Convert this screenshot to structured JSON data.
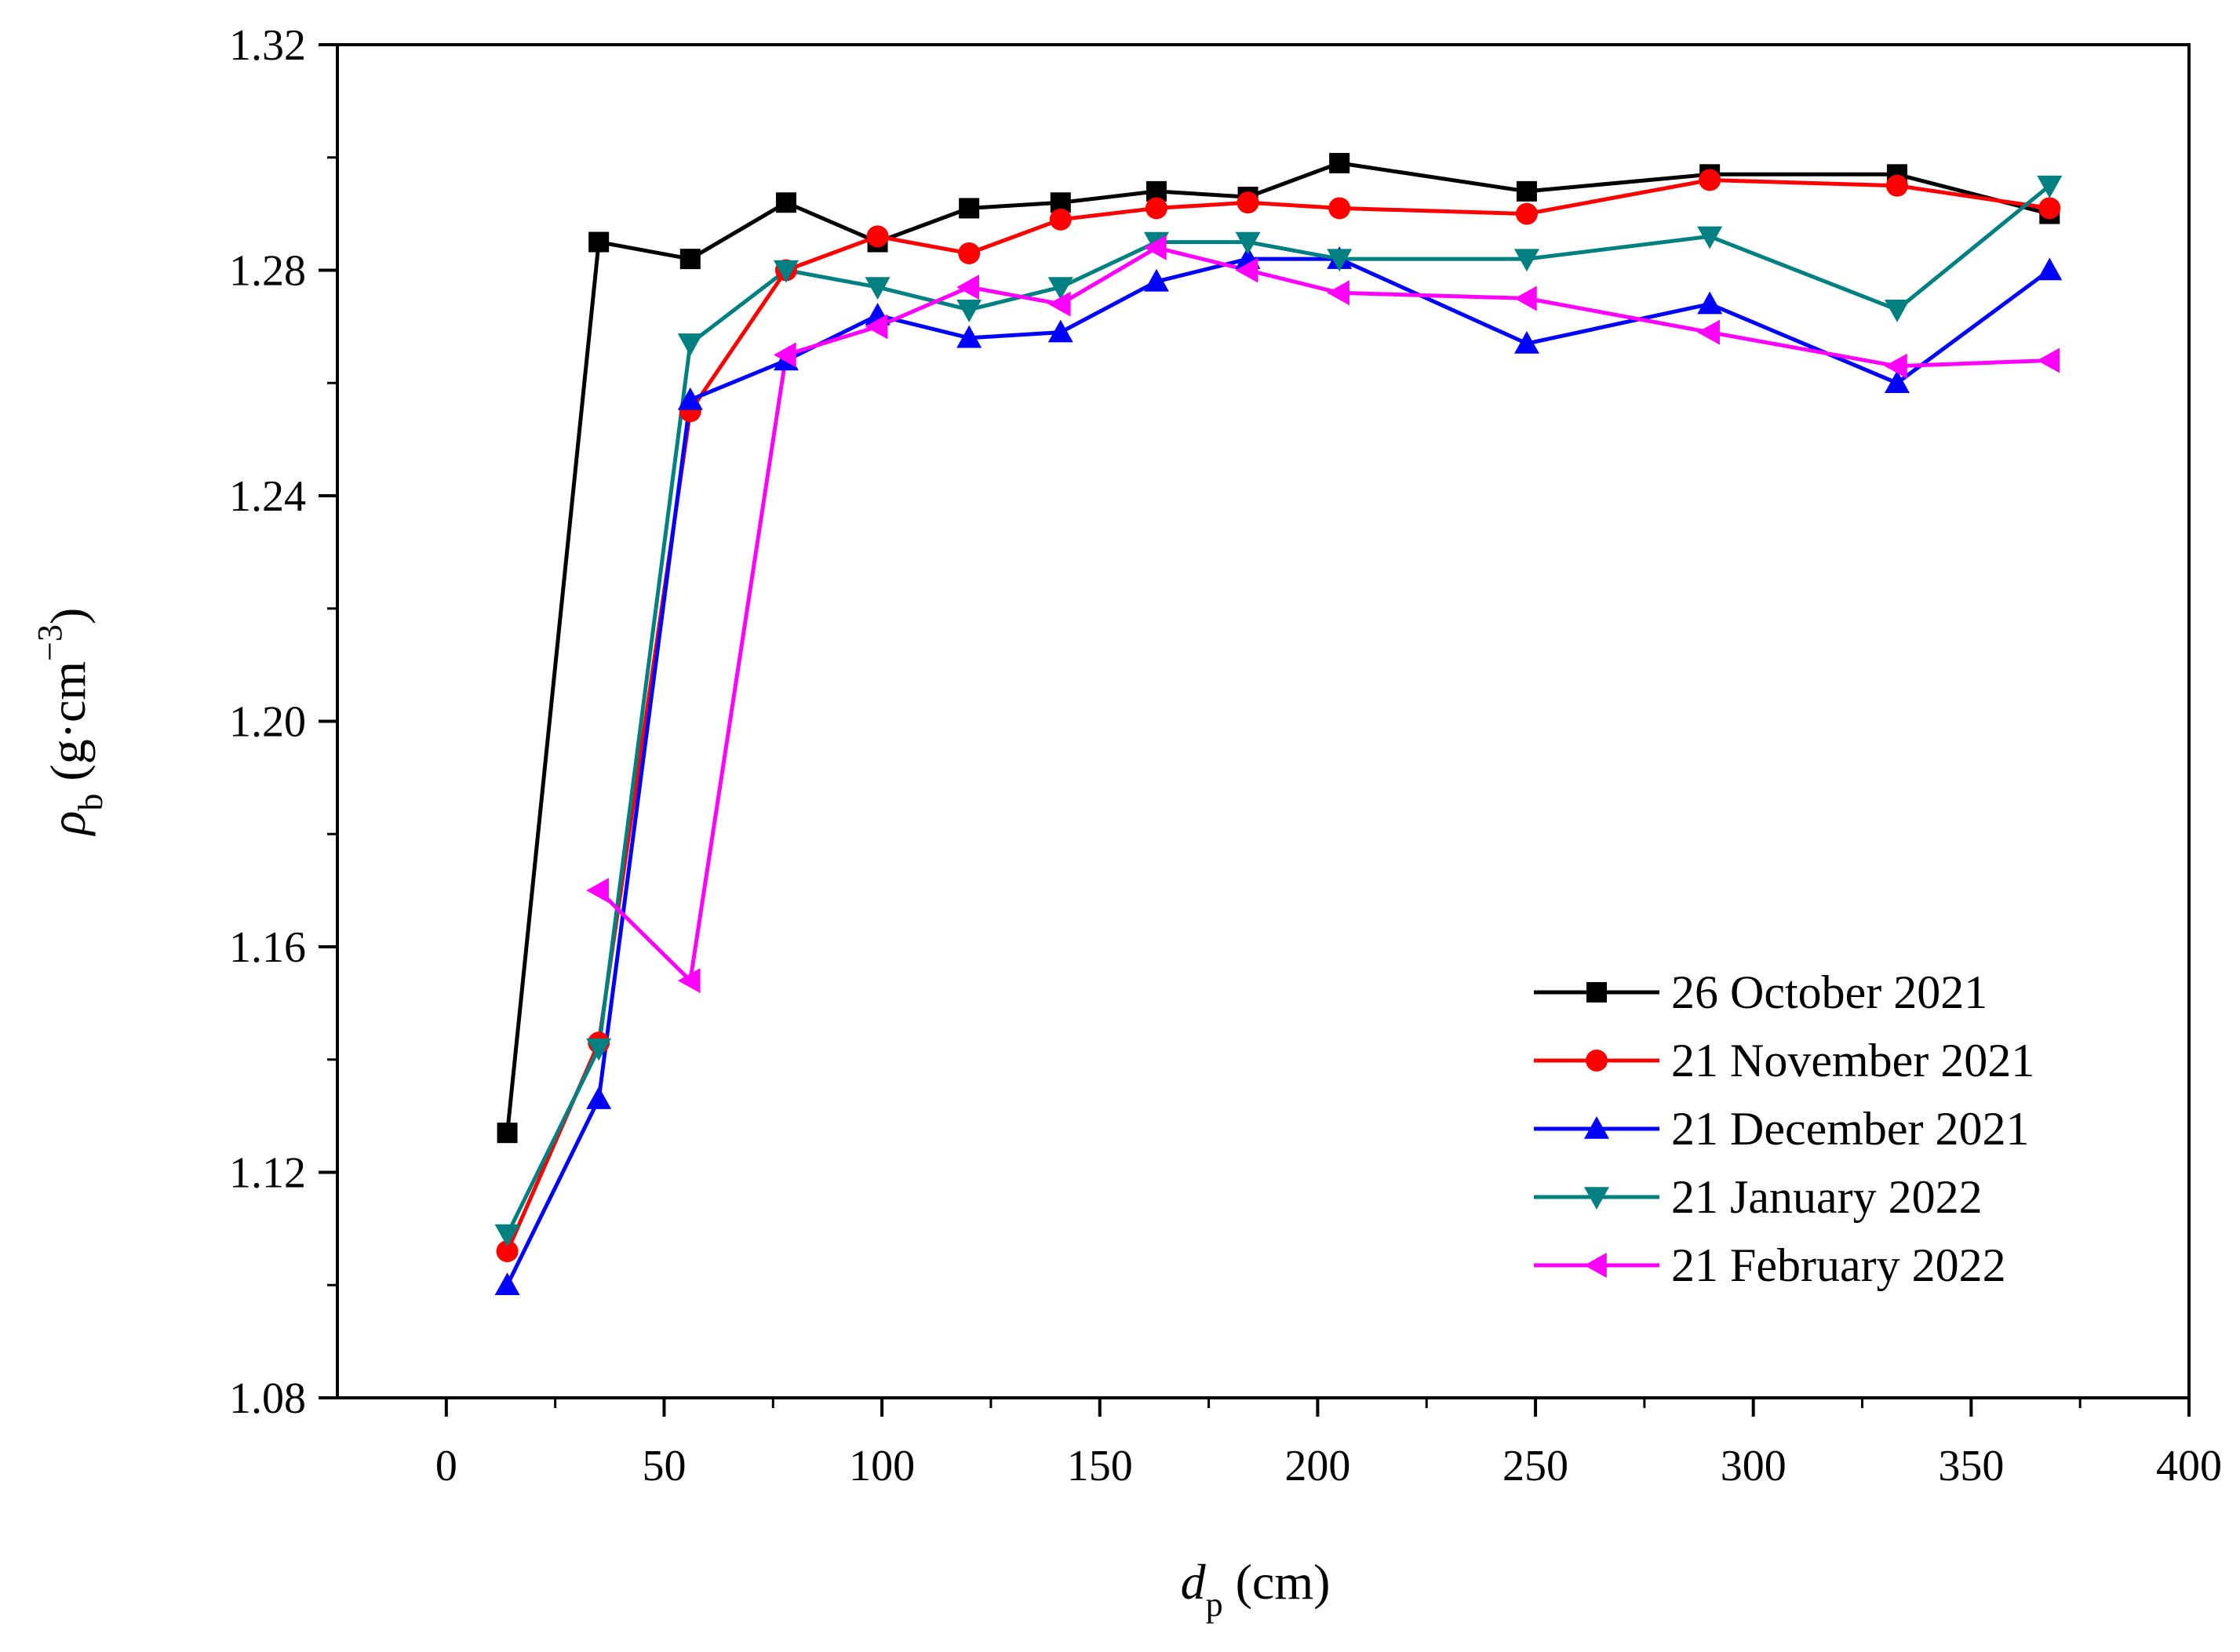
{
  "chart_data": {
    "type": "line",
    "title": "",
    "xlabel": {
      "main": "d",
      "sub": "p",
      "unit": " (cm)"
    },
    "ylabel": {
      "main": "ρ",
      "sub": "b",
      "unit_open": " (g·cm",
      "unit_sup": "−3",
      "unit_close": ")"
    },
    "xlim": [
      -25,
      400
    ],
    "ylim": [
      1.08,
      1.32
    ],
    "xticks": [
      0,
      50,
      100,
      150,
      200,
      250,
      300,
      350,
      400
    ],
    "xtick_labels": [
      "0",
      "50",
      "100",
      "150",
      "200",
      "250",
      "300",
      "350",
      "400"
    ],
    "yticks": [
      1.08,
      1.12,
      1.16,
      1.2,
      1.24,
      1.28,
      1.32
    ],
    "ytick_labels": [
      "1.08",
      "1.12",
      "1.16",
      "1.20",
      "1.24",
      "1.28",
      "1.32"
    ],
    "grid": false,
    "legend_position": "bottom-right",
    "series": [
      {
        "name": "26 October 2021",
        "color": "#000000",
        "marker": "square",
        "x": [
          14,
          35,
          56,
          78,
          99,
          120,
          141,
          163,
          184,
          205,
          248,
          290,
          333,
          368
        ],
        "y": [
          1.127,
          1.285,
          1.282,
          1.292,
          1.285,
          1.291,
          1.292,
          1.294,
          1.293,
          1.299,
          1.294,
          1.297,
          1.297,
          1.29
        ]
      },
      {
        "name": "21 November 2021",
        "color": "#ff0000",
        "marker": "circle",
        "x": [
          14,
          35,
          56,
          78,
          99,
          120,
          141,
          163,
          184,
          205,
          248,
          290,
          333,
          368
        ],
        "y": [
          1.106,
          1.143,
          1.255,
          1.28,
          1.286,
          1.283,
          1.289,
          1.291,
          1.292,
          1.291,
          1.29,
          1.296,
          1.295,
          1.291
        ]
      },
      {
        "name": "21 December 2021",
        "color": "#0000ff",
        "marker": "triangle-up",
        "x": [
          14,
          35,
          56,
          78,
          99,
          120,
          141,
          163,
          184,
          205,
          248,
          290,
          333,
          368
        ],
        "y": [
          1.1,
          1.133,
          1.257,
          1.264,
          1.272,
          1.268,
          1.269,
          1.278,
          1.282,
          1.282,
          1.267,
          1.274,
          1.26,
          1.28
        ]
      },
      {
        "name": "21 January 2022",
        "color": "#008080",
        "marker": "triangle-down",
        "x": [
          14,
          35,
          56,
          78,
          99,
          120,
          141,
          163,
          184,
          205,
          248,
          290,
          333,
          368
        ],
        "y": [
          1.109,
          1.142,
          1.267,
          1.28,
          1.277,
          1.273,
          1.277,
          1.285,
          1.285,
          1.282,
          1.282,
          1.286,
          1.273,
          1.295
        ]
      },
      {
        "name": "21 February 2022",
        "color": "#ff00ff",
        "marker": "triangle-left",
        "x": [
          35,
          56,
          78,
          99,
          120,
          141,
          163,
          184,
          205,
          248,
          290,
          333,
          368
        ],
        "y": [
          1.17,
          1.154,
          1.265,
          1.27,
          1.277,
          1.274,
          1.284,
          1.28,
          1.276,
          1.275,
          1.269,
          1.263,
          1.264
        ]
      }
    ]
  }
}
